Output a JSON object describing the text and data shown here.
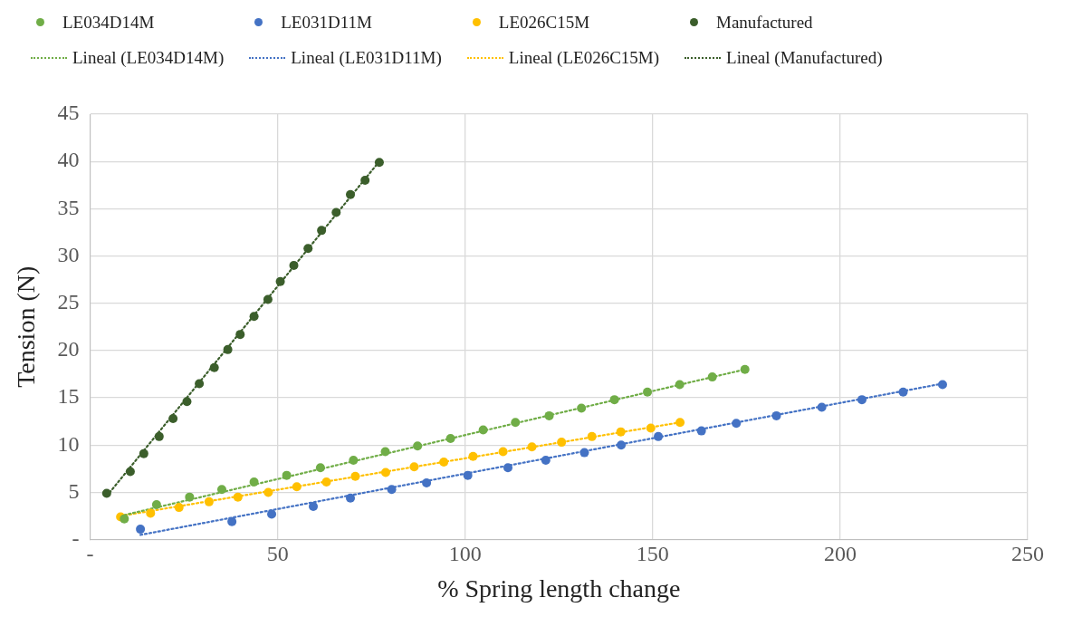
{
  "chart_data": {
    "type": "scatter",
    "xlabel": "% Spring length change",
    "ylabel": "Tension (N)",
    "xlim": [
      0,
      250
    ],
    "xticks": [
      {
        "value": 0,
        "label": "-"
      },
      50,
      100,
      150,
      200,
      250
    ],
    "ylim": [
      0,
      45
    ],
    "yticks": [
      {
        "value": 0,
        "label": "-"
      },
      5,
      10,
      15,
      20,
      25,
      30,
      35,
      40,
      45
    ],
    "grid": true,
    "legend": "top",
    "series": [
      {
        "name": "LE034D14M",
        "marker": "circle",
        "color": "#70ad47",
        "x": [
          9.1,
          17.7,
          26.5,
          35.1,
          43.7,
          52.4,
          61.4,
          70.2,
          78.7,
          87.3,
          96.1,
          104.8,
          113.4,
          122.4,
          131.0,
          139.8,
          148.6,
          157.2,
          165.9,
          174.6
        ],
        "values": [
          2.2,
          3.7,
          4.5,
          5.3,
          6.1,
          6.8,
          7.6,
          8.4,
          9.3,
          9.9,
          10.7,
          11.6,
          12.4,
          13.1,
          13.9,
          14.8,
          15.6,
          16.4,
          17.2,
          18.0
        ]
      },
      {
        "name": "LE031D11M",
        "marker": "circle",
        "color": "#4472c4",
        "x": [
          13.4,
          37.8,
          48.4,
          59.5,
          69.4,
          80.4,
          89.7,
          100.7,
          111.4,
          121.5,
          131.8,
          141.6,
          151.5,
          163.0,
          172.3,
          183.0,
          195.1,
          205.8,
          216.8,
          227.3
        ],
        "values": [
          1.1,
          1.9,
          2.7,
          3.5,
          4.4,
          5.3,
          6.0,
          6.8,
          7.6,
          8.4,
          9.2,
          10.0,
          10.9,
          11.5,
          12.3,
          13.1,
          14.0,
          14.8,
          15.6,
          16.4
        ]
      },
      {
        "name": "LE026C15M",
        "marker": "circle",
        "color": "#ffc000",
        "x": [
          8.1,
          16.1,
          23.7,
          31.7,
          39.4,
          47.5,
          55.1,
          63.0,
          70.7,
          78.8,
          86.4,
          94.3,
          102.1,
          110.1,
          117.8,
          125.7,
          133.8,
          141.5,
          149.5,
          157.3
        ],
        "values": [
          2.4,
          2.8,
          3.4,
          4.0,
          4.5,
          5.0,
          5.6,
          6.1,
          6.7,
          7.1,
          7.7,
          8.2,
          8.8,
          9.3,
          9.8,
          10.3,
          10.9,
          11.4,
          11.8,
          12.4
        ]
      },
      {
        "name": "Manufactured",
        "marker": "circle",
        "color": "#3b5e2b",
        "x": [
          4.4,
          10.7,
          14.3,
          18.4,
          22.1,
          25.8,
          29.1,
          33.1,
          36.7,
          40.0,
          43.7,
          47.4,
          50.7,
          54.3,
          58.1,
          61.7,
          65.6,
          69.4,
          73.3,
          77.1
        ],
        "values": [
          4.9,
          7.2,
          9.1,
          10.9,
          12.8,
          14.6,
          16.5,
          18.2,
          20.1,
          21.7,
          23.6,
          25.4,
          27.3,
          29.0,
          30.8,
          32.7,
          34.6,
          36.5,
          38.0,
          39.9
        ]
      },
      {
        "name": "Lineal (LE034D14M)",
        "type": "line",
        "marker": "none",
        "line_style": "dotted",
        "color": "#70ad47",
        "x": [
          9.1,
          174.6
        ],
        "values": [
          2.6,
          18.0
        ]
      },
      {
        "name": "Lineal (LE031D11M)",
        "type": "line",
        "marker": "none",
        "line_style": "dotted",
        "color": "#4472c4",
        "x": [
          13.4,
          227.3
        ],
        "values": [
          0.5,
          16.5
        ]
      },
      {
        "name": "Lineal (LE026C15M)",
        "type": "line",
        "marker": "none",
        "line_style": "dotted",
        "color": "#ffc000",
        "x": [
          8.1,
          157.3
        ],
        "values": [
          2.5,
          12.4
        ]
      },
      {
        "name": "Lineal (Manufactured)",
        "type": "line",
        "marker": "none",
        "line_style": "dotted",
        "color": "#3b5e2b",
        "x": [
          4.4,
          77.1
        ],
        "values": [
          4.6,
          40.0
        ]
      }
    ]
  }
}
